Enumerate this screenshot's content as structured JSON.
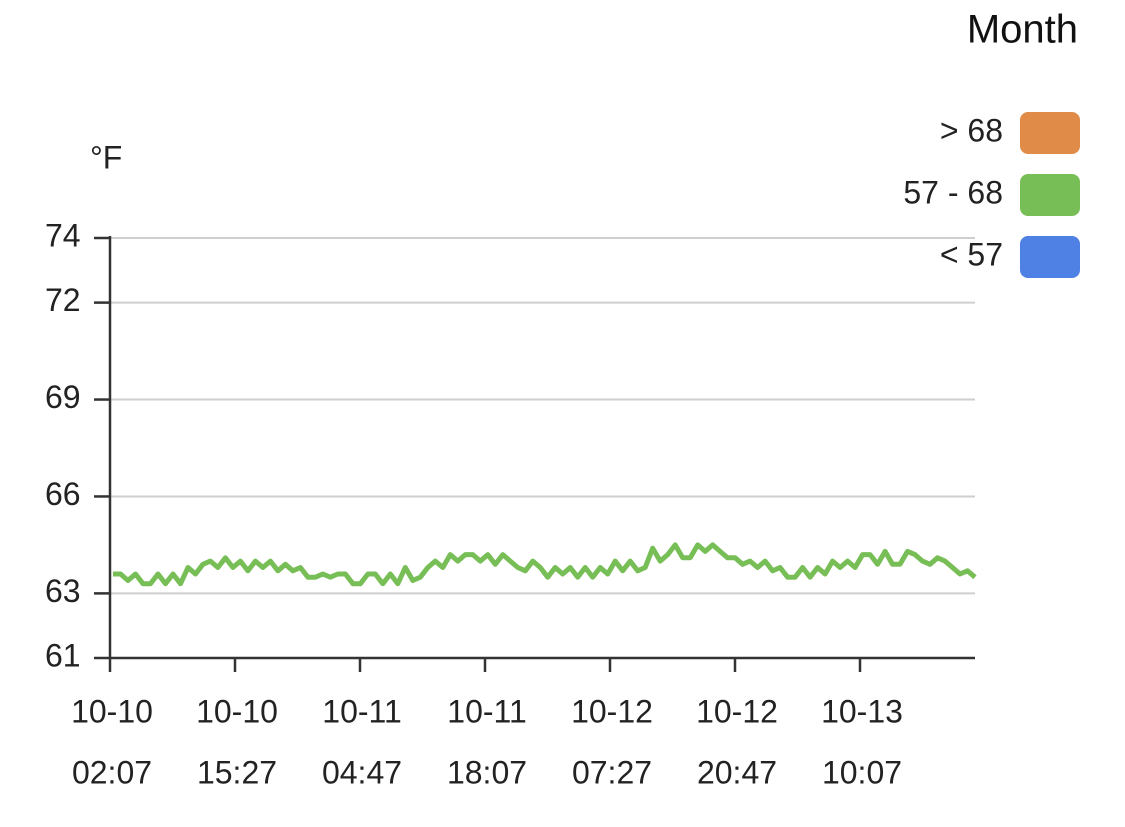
{
  "chart_data": {
    "type": "line",
    "legend_title": "Month",
    "legend": [
      {
        "label": "> 68",
        "color": "#e08b47"
      },
      {
        "label": "57 - 68",
        "color": "#78be57"
      },
      {
        "label": "< 57",
        "color": "#4f80e3"
      }
    ],
    "y_unit": "°F",
    "ylim": [
      61,
      74
    ],
    "yticks": [
      61,
      63,
      66,
      69,
      72,
      74
    ],
    "grid": true,
    "xtick_labels": [
      {
        "date": "10-10",
        "time": "02:07"
      },
      {
        "date": "10-10",
        "time": "15:27"
      },
      {
        "date": "10-11",
        "time": "04:47"
      },
      {
        "date": "10-11",
        "time": "18:07"
      },
      {
        "date": "10-12",
        "time": "07:27"
      },
      {
        "date": "10-12",
        "time": "20:47"
      },
      {
        "date": "10-13",
        "time": "10:07"
      }
    ],
    "series": [
      {
        "color": "#78be57",
        "values": [
          63.6,
          63.6,
          63.4,
          63.6,
          63.3,
          63.3,
          63.6,
          63.3,
          63.6,
          63.3,
          63.8,
          63.6,
          63.9,
          64.0,
          63.8,
          64.1,
          63.8,
          64.0,
          63.7,
          64.0,
          63.8,
          64.0,
          63.7,
          63.9,
          63.7,
          63.8,
          63.5,
          63.5,
          63.6,
          63.5,
          63.6,
          63.6,
          63.3,
          63.3,
          63.6,
          63.6,
          63.3,
          63.6,
          63.3,
          63.8,
          63.4,
          63.5,
          63.8,
          64.0,
          63.8,
          64.2,
          64.0,
          64.2,
          64.2,
          64.0,
          64.2,
          63.9,
          64.2,
          64.0,
          63.8,
          63.7,
          64.0,
          63.8,
          63.5,
          63.8,
          63.6,
          63.8,
          63.5,
          63.8,
          63.5,
          63.8,
          63.6,
          64.0,
          63.7,
          64.0,
          63.7,
          63.8,
          64.4,
          64.0,
          64.2,
          64.5,
          64.1,
          64.1,
          64.5,
          64.3,
          64.5,
          64.3,
          64.1,
          64.1,
          63.9,
          64.0,
          63.8,
          64.0,
          63.7,
          63.8,
          63.5,
          63.5,
          63.8,
          63.5,
          63.8,
          63.6,
          64.0,
          63.8,
          64.0,
          63.8,
          64.2,
          64.2,
          63.9,
          64.3,
          63.9,
          63.9,
          64.3,
          64.2,
          64.0,
          63.9,
          64.1,
          64.0,
          63.8,
          63.6,
          63.7,
          63.5
        ]
      }
    ]
  }
}
